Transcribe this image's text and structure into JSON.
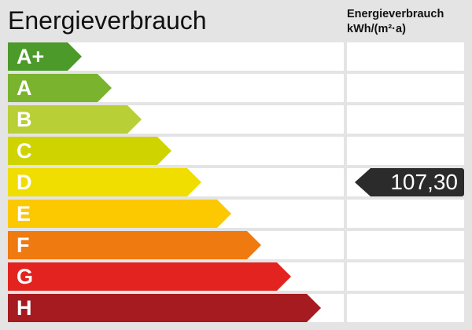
{
  "title": "Energieverbrauch",
  "unit_header": {
    "line1": "Energieverbrauch",
    "line2": "kWh/(m²·a)"
  },
  "classes": [
    {
      "label": "A+",
      "color": "#4c9a2a"
    },
    {
      "label": "A",
      "color": "#7ab32e"
    },
    {
      "label": "B",
      "color": "#b9cf36"
    },
    {
      "label": "C",
      "color": "#cfd300"
    },
    {
      "label": "D",
      "color": "#f0de00"
    },
    {
      "label": "E",
      "color": "#fcc800"
    },
    {
      "label": "F",
      "color": "#ee7a10"
    },
    {
      "label": "G",
      "color": "#e2231f"
    },
    {
      "label": "H",
      "color": "#a51b20"
    }
  ],
  "value": {
    "text": "107,30",
    "class": "D",
    "color": "#2b2b2b"
  }
}
